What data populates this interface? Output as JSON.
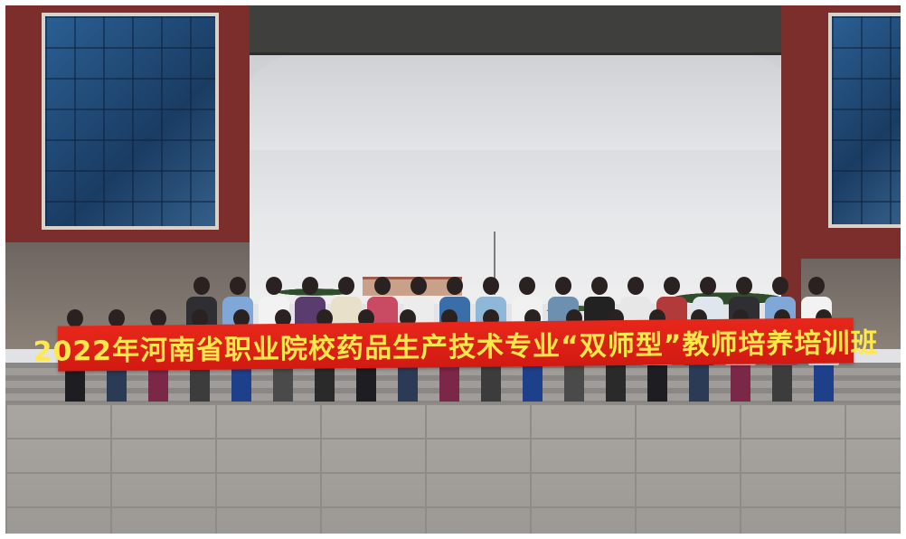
{
  "photo": {
    "description_role": "group-photo",
    "banner_text": "2022年河南省职业院校药品生产技术专业“双师型”教师培养培训班",
    "colors": {
      "banner_background": "#d11a12",
      "banner_text": "#ffe94a",
      "brick": "#7b2e2c",
      "glass": "#1a3c63"
    }
  }
}
